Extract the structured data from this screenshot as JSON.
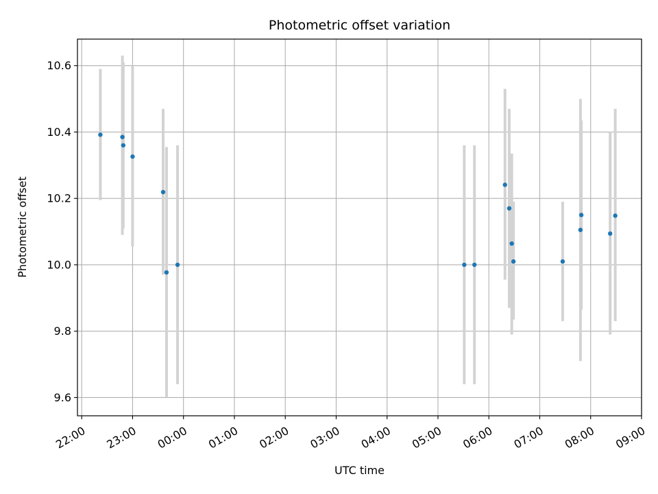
{
  "chart_data": {
    "type": "scatter",
    "title": "Photometric offset variation",
    "xlabel": "UTC time",
    "ylabel": "Photometric offset",
    "x_tick_labels": [
      "22:00",
      "23:00",
      "00:00",
      "01:00",
      "02:00",
      "03:00",
      "04:00",
      "05:00",
      "06:00",
      "07:00",
      "08:00",
      "09:00"
    ],
    "y_tick_labels": [
      "9.6",
      "9.8",
      "10.0",
      "10.2",
      "10.4",
      "10.6"
    ],
    "x_ticks": [
      "22:00",
      "23:00",
      "00:00",
      "01:00",
      "02:00",
      "03:00",
      "04:00",
      "05:00",
      "06:00",
      "07:00",
      "08:00",
      "09:00"
    ],
    "y_ticks": [
      9.6,
      9.8,
      10.0,
      10.2,
      10.4,
      10.6
    ],
    "xlim": [
      "21:55",
      "09:00"
    ],
    "ylim": [
      9.545,
      10.68
    ],
    "grid": true,
    "colors": {
      "points": "#1f77b4",
      "errorbars": "#d3d3d3",
      "grid": "#b0b0b0"
    },
    "points": [
      {
        "x": "22:22",
        "y": 10.392,
        "ylow": 10.195,
        "yhigh": 10.59
      },
      {
        "x": "22:48",
        "y": 10.385,
        "ylow": 10.09,
        "yhigh": 10.63
      },
      {
        "x": "22:49",
        "y": 10.36,
        "ylow": 10.11,
        "yhigh": 10.61
      },
      {
        "x": "23:00",
        "y": 10.326,
        "ylow": 10.055,
        "yhigh": 10.6
      },
      {
        "x": "23:36",
        "y": 10.219,
        "ylow": 9.97,
        "yhigh": 10.47
      },
      {
        "x": "23:40",
        "y": 9.977,
        "ylow": 9.6,
        "yhigh": 10.355
      },
      {
        "x": "23:53",
        "y": 10.0,
        "ylow": 9.64,
        "yhigh": 10.36
      },
      {
        "x": "05:31",
        "y": 10.0,
        "ylow": 9.64,
        "yhigh": 10.36
      },
      {
        "x": "05:43",
        "y": 10.0,
        "ylow": 9.64,
        "yhigh": 10.36
      },
      {
        "x": "06:19",
        "y": 10.241,
        "ylow": 9.955,
        "yhigh": 10.53
      },
      {
        "x": "06:24",
        "y": 10.17,
        "ylow": 9.87,
        "yhigh": 10.47
      },
      {
        "x": "06:27",
        "y": 10.064,
        "ylow": 9.79,
        "yhigh": 10.335
      },
      {
        "x": "06:29",
        "y": 10.01,
        "ylow": 9.835,
        "yhigh": 10.19
      },
      {
        "x": "07:27",
        "y": 10.01,
        "ylow": 9.83,
        "yhigh": 10.19
      },
      {
        "x": "07:48",
        "y": 10.105,
        "ylow": 9.71,
        "yhigh": 10.5
      },
      {
        "x": "07:49",
        "y": 10.15,
        "ylow": 9.865,
        "yhigh": 10.435
      },
      {
        "x": "08:23",
        "y": 10.094,
        "ylow": 9.79,
        "yhigh": 10.4
      },
      {
        "x": "08:29",
        "y": 10.148,
        "ylow": 9.83,
        "yhigh": 10.47
      }
    ]
  }
}
